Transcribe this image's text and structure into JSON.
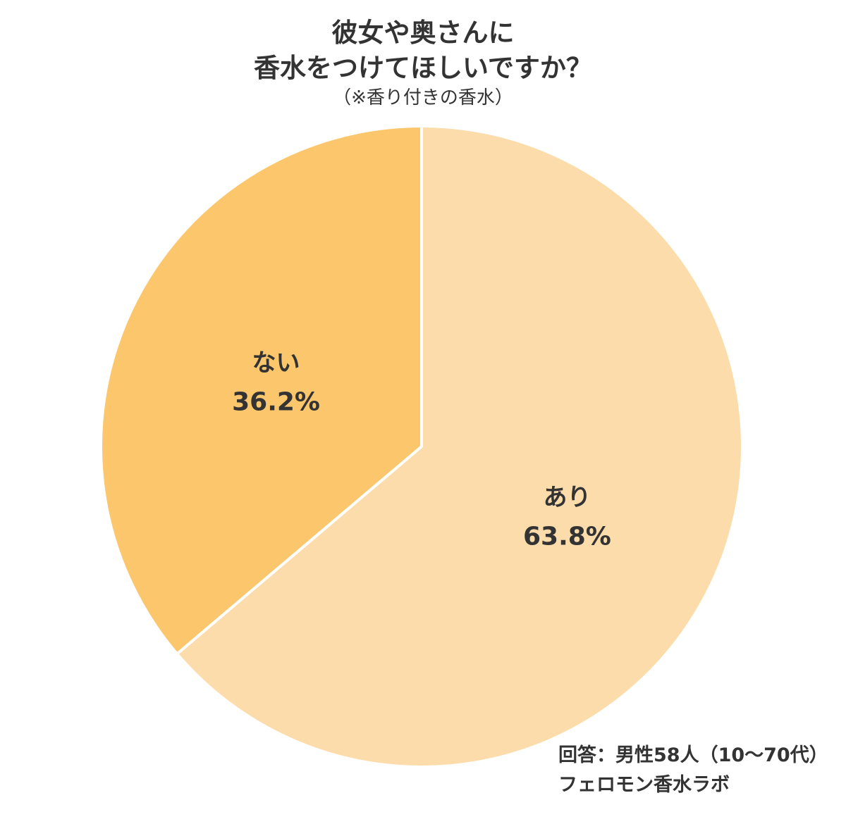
{
  "chart_data": {
    "type": "pie",
    "title": [
      "彼女や奥さんに",
      "香水をつけてほしいですか？"
    ],
    "subtitle": "（※香り付きの香水）",
    "slices": [
      {
        "name": "あり",
        "value": 63.8,
        "label": "63.8%",
        "color": "#fcdcaa"
      },
      {
        "name": "ない",
        "value": 36.2,
        "label": "36.2%",
        "color": "#fbc66c"
      }
    ],
    "start": "top",
    "direction": "clockwise"
  },
  "source": {
    "line1": "回答：男性58人（10～70代）",
    "line2": "フェロモン香水ラボ"
  }
}
